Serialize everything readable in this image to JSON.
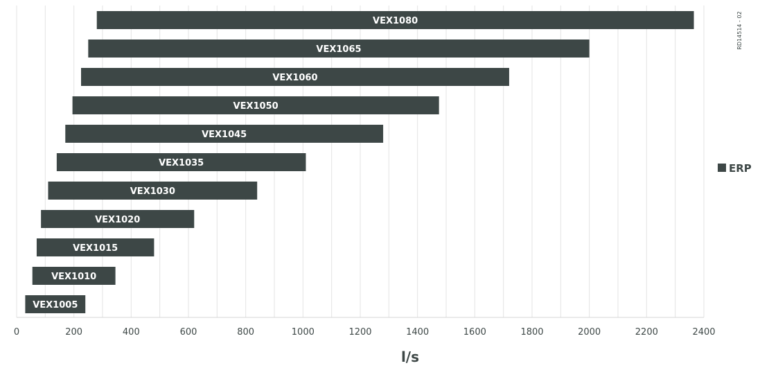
{
  "reference_code": "RD14514 - 02",
  "chart_data": {
    "type": "bar",
    "orientation": "horizontal-range",
    "xlabel": "l/s",
    "xlim": [
      0,
      2400
    ],
    "xticks": [
      0,
      200,
      400,
      600,
      800,
      1000,
      1200,
      1400,
      1600,
      1800,
      2000,
      2200,
      2400
    ],
    "grid": true,
    "legend": {
      "position": "right",
      "entries": [
        "ERP"
      ]
    },
    "bar_color": "#3d4746",
    "series": [
      {
        "name": "ERP",
        "items": [
          {
            "label": "VEX1080",
            "start": 280,
            "end": 2365
          },
          {
            "label": "VEX1065",
            "start": 250,
            "end": 2000
          },
          {
            "label": "VEX1060",
            "start": 225,
            "end": 1720
          },
          {
            "label": "VEX1050",
            "start": 195,
            "end": 1475
          },
          {
            "label": "VEX1045",
            "start": 170,
            "end": 1280
          },
          {
            "label": "VEX1035",
            "start": 140,
            "end": 1010
          },
          {
            "label": "VEX1030",
            "start": 110,
            "end": 840
          },
          {
            "label": "VEX1020",
            "start": 85,
            "end": 620
          },
          {
            "label": "VEX1015",
            "start": 70,
            "end": 480
          },
          {
            "label": "VEX1010",
            "start": 55,
            "end": 345
          },
          {
            "label": "VEX1005",
            "start": 30,
            "end": 240
          }
        ]
      }
    ]
  }
}
